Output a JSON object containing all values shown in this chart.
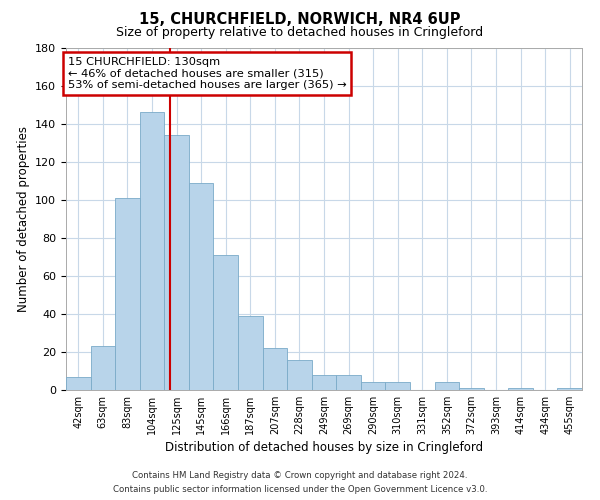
{
  "title_line1": "15, CHURCHFIELD, NORWICH, NR4 6UP",
  "title_line2": "Size of property relative to detached houses in Cringleford",
  "xlabel": "Distribution of detached houses by size in Cringleford",
  "ylabel": "Number of detached properties",
  "bar_color": "#b8d4ea",
  "bar_edge_color": "#7aaac8",
  "vline_color": "#cc0000",
  "annotation_title": "15 CHURCHFIELD: 130sqm",
  "annotation_line2": "← 46% of detached houses are smaller (315)",
  "annotation_line3": "53% of semi-detached houses are larger (365) →",
  "annotation_box_color": "#ffffff",
  "annotation_box_edge": "#cc0000",
  "categories": [
    "42sqm",
    "63sqm",
    "83sqm",
    "104sqm",
    "125sqm",
    "145sqm",
    "166sqm",
    "187sqm",
    "207sqm",
    "228sqm",
    "249sqm",
    "269sqm",
    "290sqm",
    "310sqm",
    "331sqm",
    "352sqm",
    "372sqm",
    "393sqm",
    "414sqm",
    "434sqm",
    "455sqm"
  ],
  "values": [
    7,
    23,
    101,
    146,
    134,
    109,
    71,
    39,
    22,
    16,
    8,
    8,
    4,
    4,
    0,
    4,
    1,
    0,
    1,
    0,
    1
  ],
  "ylim": [
    0,
    180
  ],
  "yticks": [
    0,
    20,
    40,
    60,
    80,
    100,
    120,
    140,
    160,
    180
  ],
  "background_color": "#ffffff",
  "grid_color": "#c8d8e8",
  "footnote1": "Contains HM Land Registry data © Crown copyright and database right 2024.",
  "footnote2": "Contains public sector information licensed under the Open Government Licence v3.0."
}
